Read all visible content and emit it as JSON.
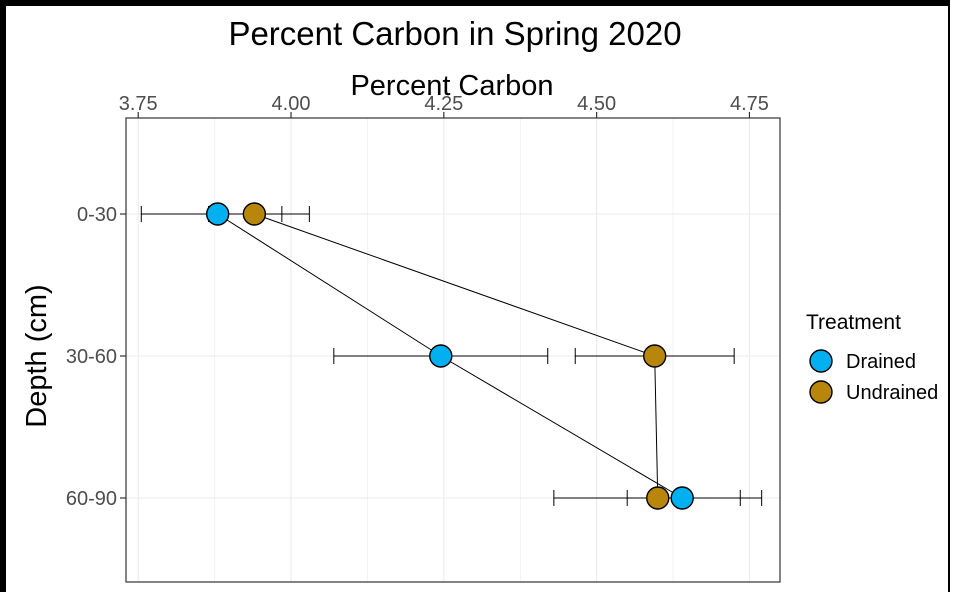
{
  "chart_data": {
    "type": "scatter",
    "title": "Percent Carbon in Spring 2020",
    "xlabel": "Percent Carbon",
    "ylabel": "Depth (cm)",
    "x_axis_position": "top",
    "xlim": [
      3.73,
      4.8
    ],
    "x_ticks": [
      3.75,
      4.0,
      4.25,
      4.5,
      4.75
    ],
    "x_tick_labels": [
      "3.75",
      "4.00",
      "4.25",
      "4.50",
      "4.75"
    ],
    "categories": [
      "0-30",
      "30-60",
      "60-90"
    ],
    "y_reversed": true,
    "grid": true,
    "legend": {
      "title": "Treatment",
      "placement": "right"
    },
    "series": [
      {
        "name": "Drained",
        "color": "#00b0f0",
        "values": [
          3.88,
          4.245,
          4.64
        ],
        "err_low": [
          3.755,
          4.07,
          4.55
        ],
        "err_high": [
          3.985,
          4.42,
          4.735
        ]
      },
      {
        "name": "Undrained",
        "color": "#b8860b",
        "values": [
          3.94,
          4.595,
          4.6
        ],
        "err_low": [
          3.865,
          4.465,
          4.43
        ],
        "err_high": [
          4.03,
          4.725,
          4.77
        ]
      }
    ]
  }
}
